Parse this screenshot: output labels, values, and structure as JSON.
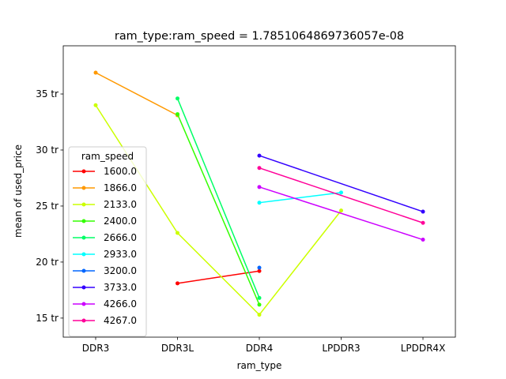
{
  "chart_data": {
    "type": "line",
    "title": "ram_type:ram_speed = 1.7851064869736057e-08",
    "xlabel": "ram_type",
    "ylabel": "mean of used_price",
    "categories": [
      "DDR3",
      "DDR3L",
      "DDR4",
      "LPDDR3",
      "LPDDR4X"
    ],
    "ylim": [
      13.3,
      39.3
    ],
    "yticks": [
      15,
      20,
      25,
      30,
      35
    ],
    "ytick_labels": [
      "15 tr",
      "20 tr",
      "25 tr",
      "30 tr",
      "35 tr"
    ],
    "legend": {
      "title": "ram_speed",
      "placement": "center-left"
    },
    "series": [
      {
        "name": "1600.0",
        "color": "#ff0000",
        "values": [
          null,
          18.1,
          19.2,
          null,
          null
        ]
      },
      {
        "name": "1866.0",
        "color": "#ff9900",
        "values": [
          36.9,
          33.1,
          null,
          null,
          null
        ]
      },
      {
        "name": "2133.0",
        "color": "#ccff00",
        "values": [
          34.0,
          22.6,
          15.3,
          24.6,
          null
        ]
      },
      {
        "name": "2400.0",
        "color": "#33ff00",
        "values": [
          null,
          33.2,
          16.2,
          null,
          null
        ]
      },
      {
        "name": "2666.0",
        "color": "#00ff66",
        "values": [
          null,
          34.6,
          16.8,
          null,
          null
        ]
      },
      {
        "name": "2933.0",
        "color": "#00ffff",
        "values": [
          null,
          null,
          25.3,
          26.2,
          null
        ]
      },
      {
        "name": "3200.0",
        "color": "#0066ff",
        "values": [
          null,
          null,
          19.5,
          null,
          null
        ]
      },
      {
        "name": "3733.0",
        "color": "#3300ff",
        "values": [
          null,
          null,
          29.5,
          null,
          24.5
        ]
      },
      {
        "name": "4266.0",
        "color": "#cc00ff",
        "values": [
          null,
          null,
          26.7,
          null,
          22.0
        ]
      },
      {
        "name": "4267.0",
        "color": "#ff0099",
        "values": [
          null,
          null,
          28.4,
          null,
          23.5
        ]
      }
    ]
  }
}
